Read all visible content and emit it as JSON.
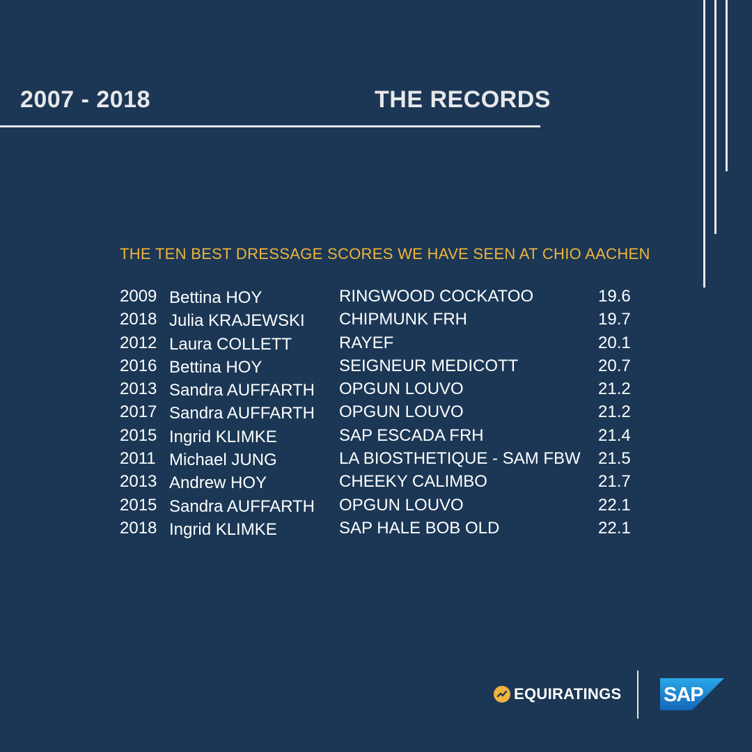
{
  "header": {
    "years_range": "2007 - 2018",
    "title": "THE RECORDS"
  },
  "subtitle": "THE TEN BEST DRESSAGE SCORES WE HAVE SEEN AT CHIO AACHEN",
  "records": [
    {
      "year": "2009",
      "rider": "Bettina HOY",
      "horse": "RINGWOOD COCKATOO",
      "score": "19.6"
    },
    {
      "year": "2018",
      "rider": "Julia KRAJEWSKI",
      "horse": "CHIPMUNK FRH",
      "score": "19.7"
    },
    {
      "year": "2012",
      "rider": "Laura COLLETT",
      "horse": "RAYEF",
      "score": "20.1"
    },
    {
      "year": "2016",
      "rider": "Bettina HOY",
      "horse": "SEIGNEUR MEDICOTT",
      "score": "20.7"
    },
    {
      "year": "2013",
      "rider": "Sandra AUFFARTH",
      "horse": "OPGUN LOUVO",
      "score": "21.2"
    },
    {
      "year": "2017",
      "rider": "Sandra AUFFARTH",
      "horse": "OPGUN LOUVO",
      "score": "21.2"
    },
    {
      "year": "2015",
      "rider": "Ingrid KLIMKE",
      "horse": "SAP ESCADA FRH",
      "score": "21.4"
    },
    {
      "year": "2011",
      "rider": "Michael JUNG",
      "horse": "LA BIOSTHETIQUE - SAM FBW",
      "score": "21.5"
    },
    {
      "year": "2013",
      "rider": "Andrew HOY",
      "horse": "CHEEKY CALIMBO",
      "score": "21.7"
    },
    {
      "year": "2015",
      "rider": "Sandra AUFFARTH",
      "horse": "OPGUN LOUVO",
      "score": "22.1"
    },
    {
      "year": "2018",
      "rider": "Ingrid KLIMKE",
      "horse": "SAP HALE BOB OLD",
      "score": "22.1"
    }
  ],
  "footer": {
    "equiratings_name": "EQUIRATINGS",
    "sap_logo_text": "SAP"
  },
  "colors": {
    "background": "#1b3755",
    "accent": "#f0b43c",
    "rule": "#e8e8ea",
    "sap_blue": "#1a7fd4"
  },
  "icons": {
    "equiratings_badge": "trend-line-icon",
    "sap_logo": "sap-logo"
  }
}
